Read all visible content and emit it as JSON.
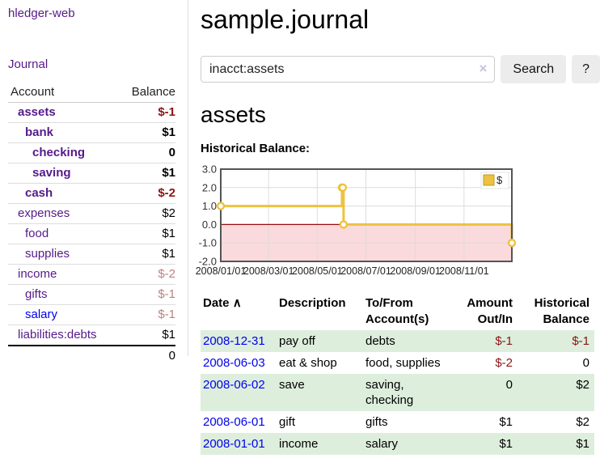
{
  "app": {
    "brand": "hledger-web",
    "nav": {
      "journal": "Journal"
    }
  },
  "sidebar": {
    "columns": {
      "account": "Account",
      "balance": "Balance"
    },
    "accounts": [
      {
        "name": "assets",
        "balance": "$-1",
        "level": 1,
        "bold": true,
        "balance_tone": "neg-strong",
        "link_tone": "purple"
      },
      {
        "name": "bank",
        "balance": "$1",
        "level": 2,
        "bold": true,
        "balance_tone": "pos",
        "link_tone": "purple"
      },
      {
        "name": "checking",
        "balance": "0",
        "level": 3,
        "bold": true,
        "balance_tone": "pos",
        "link_tone": "purple"
      },
      {
        "name": "saving",
        "balance": "$1",
        "level": 3,
        "bold": true,
        "balance_tone": "pos",
        "link_tone": "purple"
      },
      {
        "name": "cash",
        "balance": "$-2",
        "level": 2,
        "bold": true,
        "balance_tone": "neg-strong",
        "link_tone": "purple"
      },
      {
        "name": "expenses",
        "balance": "$2",
        "level": 1,
        "bold": false,
        "balance_tone": "pos",
        "link_tone": "purple"
      },
      {
        "name": "food",
        "balance": "$1",
        "level": 2,
        "bold": false,
        "balance_tone": "pos",
        "link_tone": "purple"
      },
      {
        "name": "supplies",
        "balance": "$1",
        "level": 2,
        "bold": false,
        "balance_tone": "pos",
        "link_tone": "purple"
      },
      {
        "name": "income",
        "balance": "$-2",
        "level": 1,
        "bold": false,
        "balance_tone": "neg-soft",
        "link_tone": "purple"
      },
      {
        "name": "gifts",
        "balance": "$-1",
        "level": 2,
        "bold": false,
        "balance_tone": "neg-soft",
        "link_tone": "purple"
      },
      {
        "name": "salary",
        "balance": "$-1",
        "level": 2,
        "bold": false,
        "balance_tone": "neg-soft",
        "link_tone": "blue"
      },
      {
        "name": "liabilities:debts",
        "balance": "$1",
        "level": 1,
        "bold": false,
        "balance_tone": "pos",
        "link_tone": "purple"
      }
    ],
    "total": "0"
  },
  "header": {
    "title": "sample.journal"
  },
  "search": {
    "value": "inacct:assets",
    "clear_label": "×",
    "submit_label": "Search",
    "help_label": "?"
  },
  "account_page": {
    "title": "assets",
    "chart_heading": "Historical Balance:"
  },
  "chart_data": {
    "type": "line",
    "step": true,
    "title": "Historical Balance",
    "series": [
      {
        "name": "$",
        "color": "#edc240",
        "points": [
          {
            "date": "2008-01-01",
            "value": 1
          },
          {
            "date": "2008-06-01",
            "value": 2
          },
          {
            "date": "2008-06-02",
            "value": 2
          },
          {
            "date": "2008-06-03",
            "value": 0
          },
          {
            "date": "2008-12-31",
            "value": -1
          }
        ]
      }
    ],
    "x_ticks": [
      "2008/01/01",
      "2008/03/01",
      "2008/05/01",
      "2008/07/01",
      "2008/09/01",
      "2008/11/01"
    ],
    "y_ticks": [
      "3.0",
      "2.0",
      "1.0",
      "0.0",
      "-1.0",
      "-2.0"
    ],
    "ylim": [
      -2,
      3
    ],
    "x_start": "2008-01-01",
    "x_end": "2008-12-31",
    "grid": true,
    "legend": {
      "label": "$",
      "position": "top-right"
    },
    "colors": {
      "line": "#edc240",
      "marker_fill": "#ffffff",
      "negative_fill": "#fadadc",
      "zero_line": "#9c0b0b",
      "grid": "#dcdcdc",
      "border": "#545454",
      "tick_text": "#333333"
    }
  },
  "register": {
    "headers": {
      "date": "Date",
      "sort_icon": "∧",
      "description": "Description",
      "accounts_line1": "To/From",
      "accounts_line2": "Account(s)",
      "amount_line1": "Amount",
      "amount_line2": "Out/In",
      "balance_line1": "Historical",
      "balance_line2": "Balance"
    },
    "rows": [
      {
        "date": "2008-12-31",
        "description": "pay off",
        "accounts": "debts",
        "amount": "$-1",
        "amount_tone": "neg",
        "balance": "$-1",
        "balance_tone": "neg"
      },
      {
        "date": "2008-06-03",
        "description": "eat & shop",
        "accounts": "food, supplies",
        "amount": "$-2",
        "amount_tone": "neg",
        "balance": "0",
        "balance_tone": "pos"
      },
      {
        "date": "2008-06-02",
        "description": "save",
        "accounts": "saving, checking",
        "amount": "0",
        "amount_tone": "pos",
        "balance": "$2",
        "balance_tone": "pos"
      },
      {
        "date": "2008-06-01",
        "description": "gift",
        "accounts": "gifts",
        "amount": "$1",
        "amount_tone": "pos",
        "balance": "$2",
        "balance_tone": "pos"
      },
      {
        "date": "2008-01-01",
        "description": "income",
        "accounts": "salary",
        "amount": "$1",
        "amount_tone": "pos",
        "balance": "$1",
        "balance_tone": "pos"
      }
    ]
  }
}
